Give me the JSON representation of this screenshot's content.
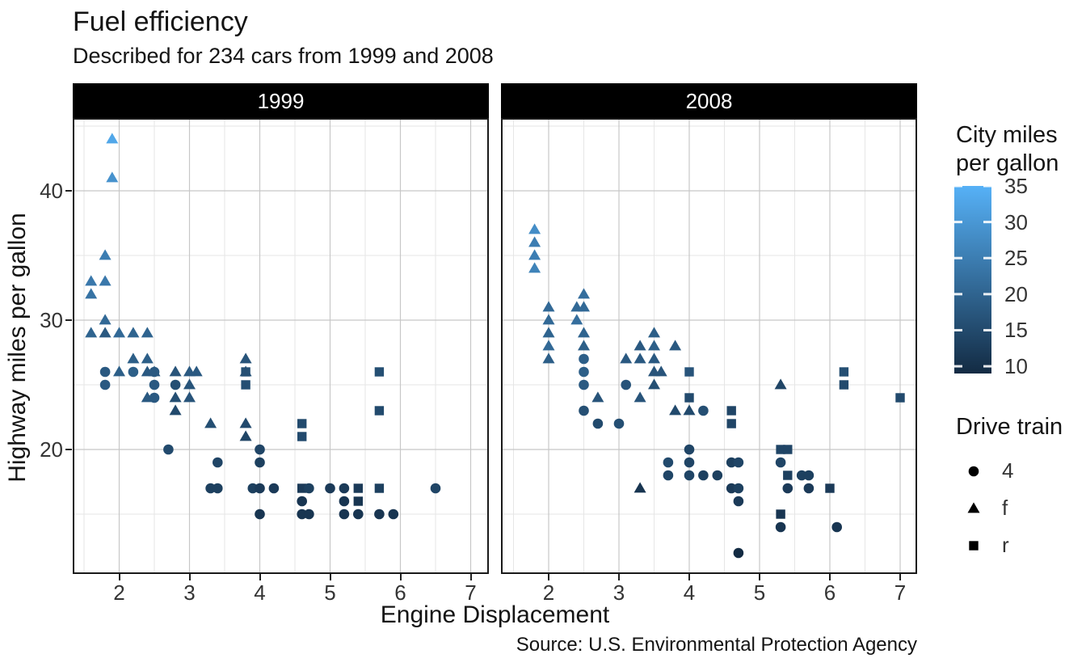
{
  "chart_data": {
    "type": "scatter",
    "title": "Fuel efficiency",
    "subtitle": "Described for 234 cars from 1999 and 2008",
    "caption": "Source: U.S. Environmental Protection Agency",
    "xlabel": "Engine Displacement",
    "ylabel": "Highway miles per gallon",
    "facets": [
      "1999",
      "2008"
    ],
    "x_ticks": [
      2,
      3,
      4,
      5,
      6,
      7
    ],
    "y_ticks": [
      20,
      30,
      40
    ],
    "x_minor": [
      1.5,
      2.5,
      3.5,
      4.5,
      5.5,
      6.5
    ],
    "y_minor": [
      15,
      25,
      35,
      45
    ],
    "x_range": [
      1.34,
      7.26
    ],
    "y_range": [
      10.4,
      45.6
    ],
    "grid": "on",
    "colors": {
      "strip_bg": "#000000",
      "strip_text": "#ffffff",
      "panel_border": "#1a1a1a",
      "grid_major": "#c7c7c7",
      "grid_minor": "#e6e6e6",
      "gradient_low": "#132B43",
      "gradient_high": "#56B1F7",
      "shape_marker": "#000000"
    },
    "color_legend": {
      "title": "City miles\nper gallon",
      "ticks": [
        35,
        30,
        25,
        20,
        15,
        10
      ],
      "domain": [
        9,
        35
      ]
    },
    "shape_legend": {
      "title": "Drive train",
      "items": [
        {
          "shape": "circle",
          "label": "4"
        },
        {
          "shape": "triangle",
          "label": "f"
        },
        {
          "shape": "square",
          "label": "r"
        }
      ]
    },
    "series": [
      {
        "facet": "1999",
        "points": [
          [
            1.9,
            44,
            33,
            "f"
          ],
          [
            1.9,
            41,
            29,
            "f"
          ],
          [
            1.8,
            35,
            25,
            "f"
          ],
          [
            1.6,
            33,
            24,
            "f"
          ],
          [
            1.8,
            33,
            24,
            "f"
          ],
          [
            1.6,
            32,
            23,
            "f"
          ],
          [
            1.8,
            30,
            21,
            "f"
          ],
          [
            1.6,
            29,
            20,
            "f"
          ],
          [
            1.8,
            29,
            18,
            "f"
          ],
          [
            2.0,
            29,
            21,
            "f"
          ],
          [
            2.2,
            29,
            20,
            "f"
          ],
          [
            2.4,
            29,
            20,
            "f"
          ],
          [
            2.2,
            27,
            19,
            "f"
          ],
          [
            2.4,
            27,
            19,
            "f"
          ],
          [
            3.8,
            27,
            17,
            "f"
          ],
          [
            1.8,
            26,
            18,
            "4"
          ],
          [
            2.0,
            26,
            19,
            "f"
          ],
          [
            2.2,
            26,
            19,
            "4"
          ],
          [
            2.4,
            26,
            18,
            "f"
          ],
          [
            2.5,
            26,
            18,
            "f"
          ],
          [
            2.5,
            26,
            18,
            "4"
          ],
          [
            2.8,
            26,
            17,
            "f"
          ],
          [
            3.0,
            26,
            18,
            "f"
          ],
          [
            3.1,
            26,
            18,
            "f"
          ],
          [
            3.8,
            26,
            17,
            "f"
          ],
          [
            3.8,
            26,
            16,
            "r"
          ],
          [
            5.7,
            26,
            16,
            "r"
          ],
          [
            1.8,
            25,
            18,
            "4"
          ],
          [
            2.5,
            25,
            18,
            "4"
          ],
          [
            2.8,
            25,
            16,
            "4"
          ],
          [
            3.0,
            25,
            17,
            "f"
          ],
          [
            3.8,
            25,
            16,
            "r"
          ],
          [
            2.4,
            24,
            18,
            "f"
          ],
          [
            2.5,
            24,
            18,
            "4"
          ],
          [
            2.8,
            24,
            16,
            "f"
          ],
          [
            3.0,
            24,
            17,
            "f"
          ],
          [
            2.8,
            23,
            15,
            "f"
          ],
          [
            5.7,
            23,
            15,
            "r"
          ],
          [
            3.3,
            22,
            16,
            "f"
          ],
          [
            3.8,
            22,
            15,
            "f"
          ],
          [
            4.6,
            22,
            15,
            "r"
          ],
          [
            3.8,
            21,
            14,
            "f"
          ],
          [
            4.6,
            21,
            15,
            "r"
          ],
          [
            2.7,
            20,
            15,
            "4"
          ],
          [
            4.0,
            20,
            14,
            "4"
          ],
          [
            3.4,
            19,
            14,
            "4"
          ],
          [
            4.0,
            19,
            13,
            "4"
          ],
          [
            3.3,
            17,
            13,
            "4"
          ],
          [
            3.4,
            17,
            13,
            "4"
          ],
          [
            3.9,
            17,
            13,
            "4"
          ],
          [
            4.0,
            17,
            12,
            "4"
          ],
          [
            4.2,
            17,
            12,
            "4"
          ],
          [
            4.6,
            17,
            12,
            "r"
          ],
          [
            4.7,
            17,
            13,
            "4"
          ],
          [
            5.0,
            17,
            12,
            "4"
          ],
          [
            5.2,
            17,
            12,
            "4"
          ],
          [
            5.4,
            17,
            12,
            "r"
          ],
          [
            5.7,
            17,
            13,
            "r"
          ],
          [
            6.5,
            17,
            14,
            "4"
          ],
          [
            4.6,
            16,
            11,
            "4"
          ],
          [
            5.2,
            16,
            11,
            "4"
          ],
          [
            5.4,
            16,
            11,
            "r"
          ],
          [
            4.0,
            15,
            11,
            "4"
          ],
          [
            4.6,
            15,
            11,
            "4"
          ],
          [
            4.7,
            15,
            11,
            "4"
          ],
          [
            5.2,
            15,
            11,
            "4"
          ],
          [
            5.4,
            15,
            11,
            "4"
          ],
          [
            5.7,
            15,
            11,
            "4"
          ],
          [
            5.9,
            15,
            11,
            "4"
          ]
        ]
      },
      {
        "facet": "2008",
        "points": [
          [
            1.8,
            37,
            28,
            "f"
          ],
          [
            1.8,
            36,
            25,
            "f"
          ],
          [
            1.8,
            35,
            25,
            "f"
          ],
          [
            1.8,
            34,
            26,
            "f"
          ],
          [
            2.0,
            31,
            21,
            "f"
          ],
          [
            2.0,
            30,
            21,
            "f"
          ],
          [
            2.0,
            29,
            20,
            "f"
          ],
          [
            2.0,
            28,
            21,
            "f"
          ],
          [
            2.0,
            27,
            19,
            "f"
          ],
          [
            2.5,
            32,
            22,
            "f"
          ],
          [
            2.4,
            31,
            21,
            "f"
          ],
          [
            2.5,
            31,
            21,
            "f"
          ],
          [
            2.4,
            30,
            22,
            "f"
          ],
          [
            2.5,
            29,
            20,
            "f"
          ],
          [
            2.5,
            28,
            19,
            "f"
          ],
          [
            2.5,
            27,
            19,
            "4"
          ],
          [
            2.5,
            26,
            19,
            "4"
          ],
          [
            2.5,
            25,
            18,
            "4"
          ],
          [
            2.7,
            24,
            17,
            "f"
          ],
          [
            2.5,
            23,
            16,
            "4"
          ],
          [
            2.7,
            22,
            15,
            "4"
          ],
          [
            3.0,
            22,
            16,
            "4"
          ],
          [
            3.5,
            29,
            19,
            "f"
          ],
          [
            3.3,
            28,
            18,
            "f"
          ],
          [
            3.5,
            28,
            19,
            "f"
          ],
          [
            3.8,
            28,
            18,
            "f"
          ],
          [
            3.1,
            27,
            18,
            "f"
          ],
          [
            3.3,
            27,
            18,
            "f"
          ],
          [
            3.5,
            27,
            18,
            "f"
          ],
          [
            3.5,
            26,
            17,
            "f"
          ],
          [
            3.6,
            26,
            17,
            "f"
          ],
          [
            3.1,
            25,
            17,
            "4"
          ],
          [
            3.5,
            25,
            16,
            "f"
          ],
          [
            3.3,
            24,
            17,
            "f"
          ],
          [
            4.0,
            26,
            17,
            "r"
          ],
          [
            4.0,
            24,
            15,
            "r"
          ],
          [
            3.8,
            23,
            15,
            "f"
          ],
          [
            4.0,
            23,
            15,
            "f"
          ],
          [
            4.2,
            23,
            16,
            "4"
          ],
          [
            4.0,
            20,
            14,
            "4"
          ],
          [
            3.7,
            19,
            15,
            "4"
          ],
          [
            4.0,
            19,
            14,
            "4"
          ],
          [
            3.7,
            18,
            14,
            "4"
          ],
          [
            4.0,
            18,
            14,
            "4"
          ],
          [
            4.2,
            18,
            13,
            "4"
          ],
          [
            4.4,
            18,
            13,
            "4"
          ],
          [
            3.3,
            17,
            11,
            "f"
          ],
          [
            4.6,
            23,
            14,
            "r"
          ],
          [
            4.6,
            22,
            14,
            "r"
          ],
          [
            4.6,
            19,
            13,
            "4"
          ],
          [
            4.7,
            19,
            14,
            "4"
          ],
          [
            4.6,
            17,
            12,
            "4"
          ],
          [
            4.7,
            17,
            13,
            "4"
          ],
          [
            4.7,
            16,
            12,
            "4"
          ],
          [
            4.7,
            12,
            9,
            "4"
          ],
          [
            5.3,
            25,
            14,
            "f"
          ],
          [
            5.3,
            20,
            14,
            "r"
          ],
          [
            5.4,
            20,
            14,
            "r"
          ],
          [
            5.3,
            19,
            14,
            "4"
          ],
          [
            5.4,
            18,
            13,
            "r"
          ],
          [
            5.6,
            18,
            13,
            "4"
          ],
          [
            5.7,
            18,
            13,
            "4"
          ],
          [
            5.4,
            17,
            12,
            "4"
          ],
          [
            5.7,
            17,
            12,
            "4"
          ],
          [
            6.0,
            17,
            12,
            "r"
          ],
          [
            5.3,
            15,
            11,
            "r"
          ],
          [
            5.3,
            14,
            11,
            "4"
          ],
          [
            6.1,
            14,
            11,
            "4"
          ],
          [
            6.2,
            26,
            16,
            "r"
          ],
          [
            6.2,
            25,
            15,
            "r"
          ],
          [
            7.0,
            24,
            15,
            "r"
          ]
        ]
      }
    ]
  }
}
